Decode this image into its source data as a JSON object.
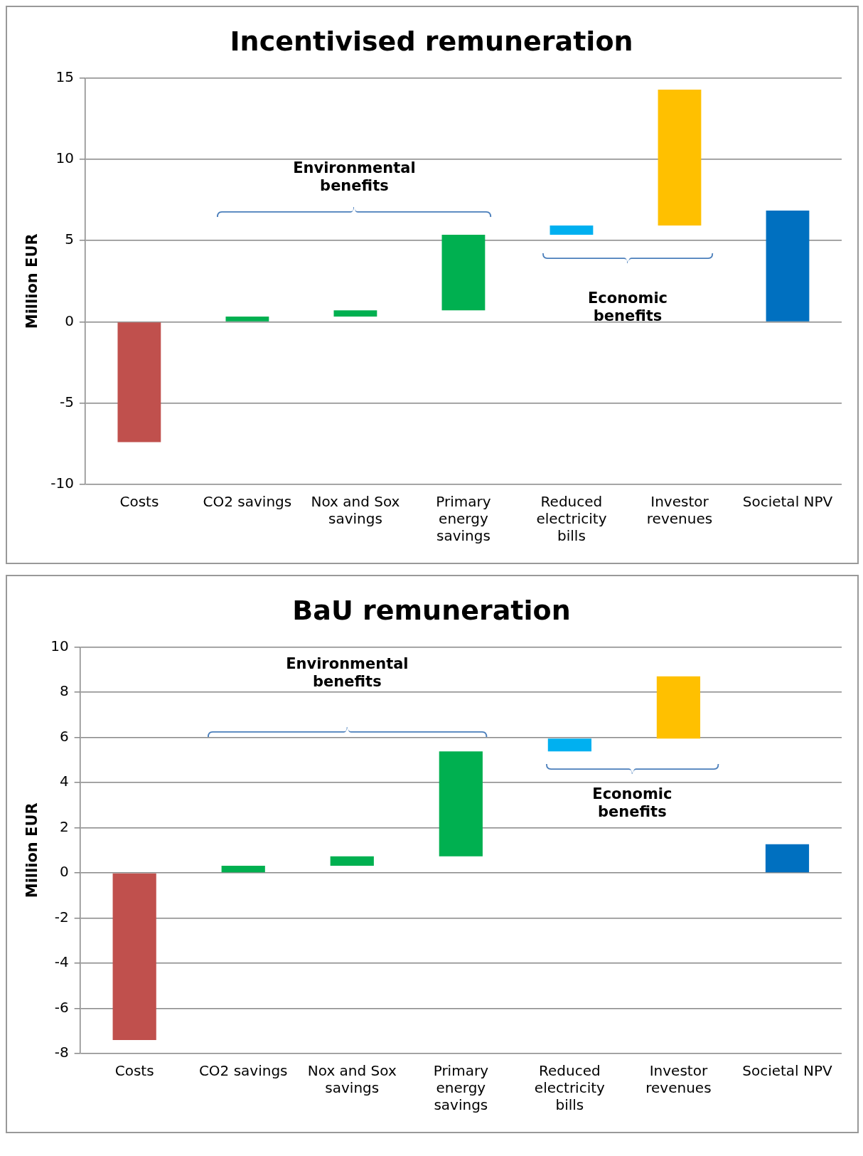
{
  "chart_data": [
    {
      "type": "bar",
      "title": "Incentivised remuneration",
      "ylabel": "Million EUR",
      "categories": [
        "Costs",
        "CO2 savings",
        "Nox and Sox savings",
        "Primary energy savings",
        "Reduced electricity bills",
        "Investor revenues",
        "Societal NPV"
      ],
      "values": [
        -7.4,
        0.33,
        0.38,
        4.65,
        0.57,
        8.35,
        6.85
      ],
      "base": [
        0,
        0,
        0.33,
        0.71,
        5.36,
        5.93,
        0
      ],
      "colors": [
        "#c0504d",
        "#00b050",
        "#00b050",
        "#00b050",
        "#00b0f0",
        "#ffc000",
        "#0070c0"
      ],
      "ylim": [
        -10,
        15
      ],
      "yticks": [
        -10,
        -5,
        0,
        5,
        10,
        15
      ],
      "grid": "y",
      "legend": false,
      "annotations": [
        "Environmental benefits",
        "Economic benefits"
      ]
    },
    {
      "type": "bar",
      "title": "BaU remuneration",
      "ylabel": "Million EUR",
      "categories": [
        "Costs",
        "CO2 savings",
        "Nox and Sox savings",
        "Primary energy savings",
        "Reduced electricity bills",
        "Investor revenues",
        "Societal NPV"
      ],
      "values": [
        -7.4,
        0.32,
        0.41,
        4.65,
        0.57,
        2.75,
        1.27
      ],
      "base": [
        0,
        0,
        0.32,
        0.73,
        5.38,
        5.95,
        0
      ],
      "colors": [
        "#c0504d",
        "#00b050",
        "#00b050",
        "#00b050",
        "#00b0f0",
        "#ffc000",
        "#0070c0"
      ],
      "ylim": [
        -8,
        10
      ],
      "yticks": [
        -8,
        -6,
        -4,
        -2,
        0,
        2,
        4,
        6,
        8,
        10
      ],
      "grid": "y",
      "legend": false,
      "annotations": [
        "Environmental benefits",
        "Economic benefits"
      ]
    }
  ]
}
